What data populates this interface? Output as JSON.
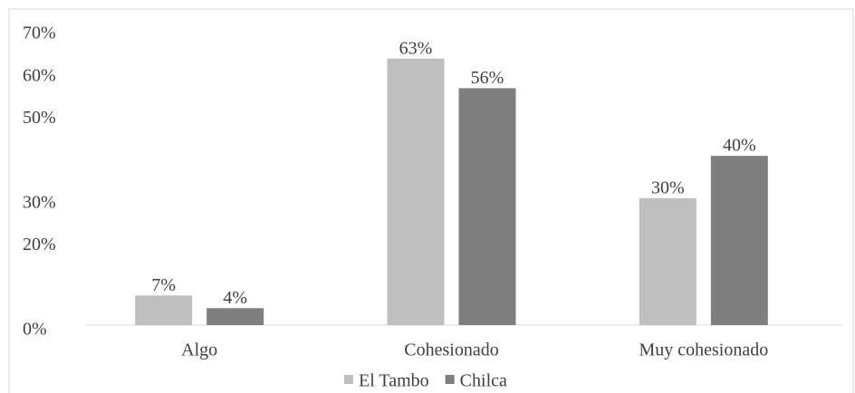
{
  "chart_data": {
    "type": "bar",
    "categories": [
      "Algo",
      "Cohesionado",
      "Muy cohesionado"
    ],
    "series": [
      {
        "name": "El Tambo",
        "color": "#bfbfbf",
        "values": [
          7,
          63,
          30
        ],
        "value_labels": [
          "7%",
          "63%",
          "30%"
        ]
      },
      {
        "name": "Chilca",
        "color": "#7f7f7f",
        "values": [
          4,
          56,
          40
        ],
        "value_labels": [
          "4%",
          "56%",
          "40%"
        ]
      }
    ],
    "ylim": [
      0,
      70
    ],
    "yticks": [
      {
        "value": 0,
        "label": "0%"
      },
      {
        "value": 20,
        "label": "20%"
      },
      {
        "value": 30,
        "label": "30%"
      },
      {
        "value": 50,
        "label": "50%"
      },
      {
        "value": 60,
        "label": "60%"
      },
      {
        "value": 70,
        "label": "70%"
      }
    ],
    "legend": "bottom"
  }
}
